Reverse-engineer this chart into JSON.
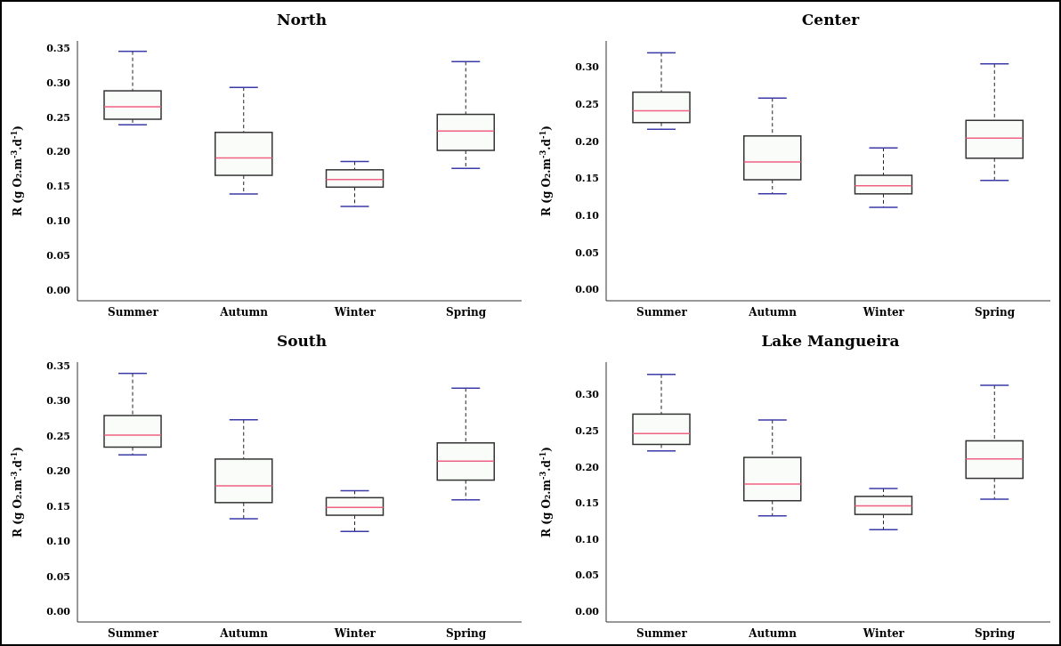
{
  "chart_data": [
    {
      "type": "box",
      "title": "North",
      "ylabel": "R (g O₂.m$^{-3}$.d$^{-1}$)",
      "categories": [
        "Summer",
        "Autumn",
        "Winter",
        "Spring"
      ],
      "ylim": [
        -0.015,
        0.36
      ],
      "yticks": [
        {
          "value": 0,
          "label": "0.00"
        },
        {
          "value": 0.05,
          "label": "0.05"
        },
        {
          "value": 0.1,
          "label": "0.10"
        },
        {
          "value": 0.15,
          "label": "0.15"
        },
        {
          "value": 0.2,
          "label": "0.20"
        },
        {
          "value": 0.25,
          "label": "0.25"
        },
        {
          "value": 0.3,
          "label": "0.30"
        },
        {
          "value": 0.35,
          "label": "0.35"
        }
      ],
      "grid": false,
      "color": "#fafcfa",
      "boxes": [
        {
          "low": 0.239,
          "q1": 0.247,
          "median": 0.265,
          "q3": 0.288,
          "high": 0.345
        },
        {
          "low": 0.139,
          "q1": 0.166,
          "median": 0.191,
          "q3": 0.228,
          "high": 0.293
        },
        {
          "low": 0.121,
          "q1": 0.149,
          "median": 0.16,
          "q3": 0.174,
          "high": 0.186
        },
        {
          "low": 0.176,
          "q1": 0.202,
          "median": 0.23,
          "q3": 0.254,
          "high": 0.33
        }
      ]
    },
    {
      "type": "box",
      "title": "Center",
      "ylabel": "R (g O₂.m$^{-3}$.d$^{-1}$)",
      "categories": [
        "Summer",
        "Autumn",
        "Winter",
        "Spring"
      ],
      "ylim": [
        -0.015,
        0.335
      ],
      "yticks": [
        {
          "value": 0,
          "label": "0.00"
        },
        {
          "value": 0.05,
          "label": "0.05"
        },
        {
          "value": 0.1,
          "label": "0.10"
        },
        {
          "value": 0.15,
          "label": "0.15"
        },
        {
          "value": 0.2,
          "label": "0.20"
        },
        {
          "value": 0.25,
          "label": "0.25"
        },
        {
          "value": 0.3,
          "label": "0.30"
        }
      ],
      "grid": false,
      "color": "#fafcfa",
      "boxes": [
        {
          "low": 0.216,
          "q1": 0.225,
          "median": 0.241,
          "q3": 0.266,
          "high": 0.319
        },
        {
          "low": 0.129,
          "q1": 0.148,
          "median": 0.172,
          "q3": 0.207,
          "high": 0.258
        },
        {
          "low": 0.111,
          "q1": 0.129,
          "median": 0.14,
          "q3": 0.154,
          "high": 0.191
        },
        {
          "low": 0.147,
          "q1": 0.177,
          "median": 0.204,
          "q3": 0.228,
          "high": 0.304
        }
      ]
    },
    {
      "type": "box",
      "title": "South",
      "ylabel": "R (g O₂.m$^{-3}$.d$^{-1}$)",
      "categories": [
        "Summer",
        "Autumn",
        "Winter",
        "Spring"
      ],
      "ylim": [
        -0.015,
        0.355
      ],
      "yticks": [
        {
          "value": 0,
          "label": "0.00"
        },
        {
          "value": 0.05,
          "label": "0.05"
        },
        {
          "value": 0.1,
          "label": "0.10"
        },
        {
          "value": 0.15,
          "label": "0.15"
        },
        {
          "value": 0.2,
          "label": "0.20"
        },
        {
          "value": 0.25,
          "label": "0.25"
        },
        {
          "value": 0.3,
          "label": "0.30"
        },
        {
          "value": 0.35,
          "label": "0.35"
        }
      ],
      "grid": false,
      "color": "#fafcfa",
      "boxes": [
        {
          "low": 0.223,
          "q1": 0.234,
          "median": 0.251,
          "q3": 0.279,
          "high": 0.339
        },
        {
          "low": 0.132,
          "q1": 0.155,
          "median": 0.179,
          "q3": 0.217,
          "high": 0.273
        },
        {
          "low": 0.114,
          "q1": 0.137,
          "median": 0.148,
          "q3": 0.162,
          "high": 0.172
        },
        {
          "low": 0.159,
          "q1": 0.187,
          "median": 0.214,
          "q3": 0.24,
          "high": 0.318
        }
      ]
    },
    {
      "type": "box",
      "title": "Lake Mangueira",
      "ylabel": "R (g O₂.m$^{-3}$.d$^{-1}$)",
      "categories": [
        "Summer",
        "Autumn",
        "Winter",
        "Spring"
      ],
      "ylim": [
        -0.015,
        0.345
      ],
      "yticks": [
        {
          "value": 0,
          "label": "0.00"
        },
        {
          "value": 0.05,
          "label": "0.05"
        },
        {
          "value": 0.1,
          "label": "0.10"
        },
        {
          "value": 0.15,
          "label": "0.15"
        },
        {
          "value": 0.2,
          "label": "0.20"
        },
        {
          "value": 0.25,
          "label": "0.25"
        },
        {
          "value": 0.3,
          "label": "0.30"
        }
      ],
      "grid": false,
      "color": "#fafcfa",
      "boxes": [
        {
          "low": 0.222,
          "q1": 0.231,
          "median": 0.246,
          "q3": 0.273,
          "high": 0.328
        },
        {
          "low": 0.132,
          "q1": 0.153,
          "median": 0.176,
          "q3": 0.213,
          "high": 0.265
        },
        {
          "low": 0.113,
          "q1": 0.134,
          "median": 0.146,
          "q3": 0.159,
          "high": 0.17
        },
        {
          "low": 0.155,
          "q1": 0.184,
          "median": 0.211,
          "q3": 0.236,
          "high": 0.313
        }
      ]
    }
  ]
}
